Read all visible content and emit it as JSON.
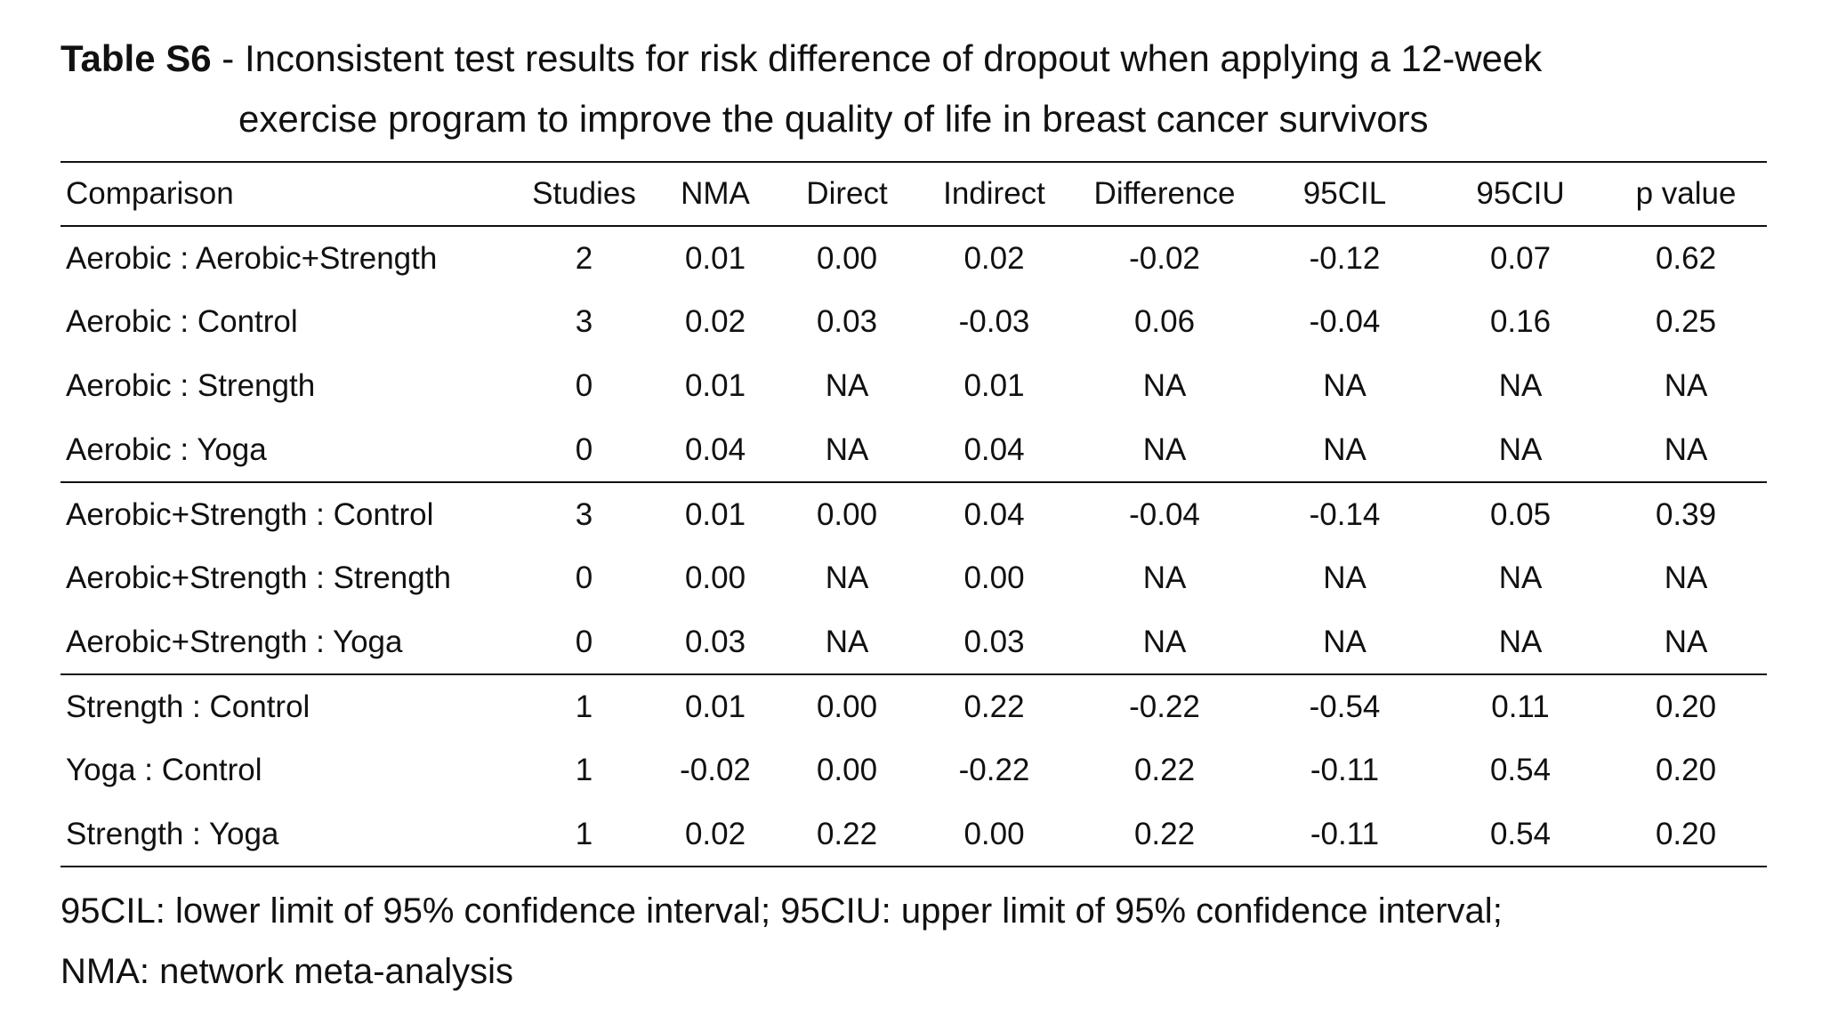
{
  "title": {
    "label": "Table S6",
    "line1": " - Inconsistent test results for risk difference of dropout when applying a 12-week",
    "line2": "exercise program to improve the quality of life in breast cancer survivors"
  },
  "table": {
    "headers": [
      "Comparison",
      "Studies",
      "NMA",
      "Direct",
      "Indirect",
      "Difference",
      "95CIL",
      "95CIU",
      "p value"
    ],
    "rows": [
      [
        "Aerobic : Aerobic+Strength",
        "2",
        "0.01",
        "0.00",
        "0.02",
        "-0.02",
        "-0.12",
        "0.07",
        "0.62"
      ],
      [
        "Aerobic : Control",
        "3",
        "0.02",
        "0.03",
        "-0.03",
        "0.06",
        "-0.04",
        "0.16",
        "0.25"
      ],
      [
        "Aerobic : Strength",
        "0",
        "0.01",
        "NA",
        "0.01",
        "NA",
        "NA",
        "NA",
        "NA"
      ],
      [
        "Aerobic : Yoga",
        "0",
        "0.04",
        "NA",
        "0.04",
        "NA",
        "NA",
        "NA",
        "NA"
      ],
      [
        "Aerobic+Strength : Control",
        "3",
        "0.01",
        "0.00",
        "0.04",
        "-0.04",
        "-0.14",
        "0.05",
        "0.39"
      ],
      [
        "Aerobic+Strength : Strength",
        "0",
        "0.00",
        "NA",
        "0.00",
        "NA",
        "NA",
        "NA",
        "NA"
      ],
      [
        "Aerobic+Strength : Yoga",
        "0",
        "0.03",
        "NA",
        "0.03",
        "NA",
        "NA",
        "NA",
        "NA"
      ],
      [
        "Strength : Control",
        "1",
        "0.01",
        "0.00",
        "0.22",
        "-0.22",
        "-0.54",
        "0.11",
        "0.20"
      ],
      [
        "Yoga : Control",
        "1",
        "-0.02",
        "0.00",
        "-0.22",
        "0.22",
        "-0.11",
        "0.54",
        "0.20"
      ],
      [
        "Strength : Yoga",
        "1",
        "0.02",
        "0.22",
        "0.00",
        "0.22",
        "-0.11",
        "0.54",
        "0.20"
      ]
    ]
  },
  "footnote": {
    "line1": "95CIL: lower limit of 95% confidence interval; 95CIU: upper limit of 95% confidence interval;",
    "line2": "NMA: network meta-analysis"
  }
}
